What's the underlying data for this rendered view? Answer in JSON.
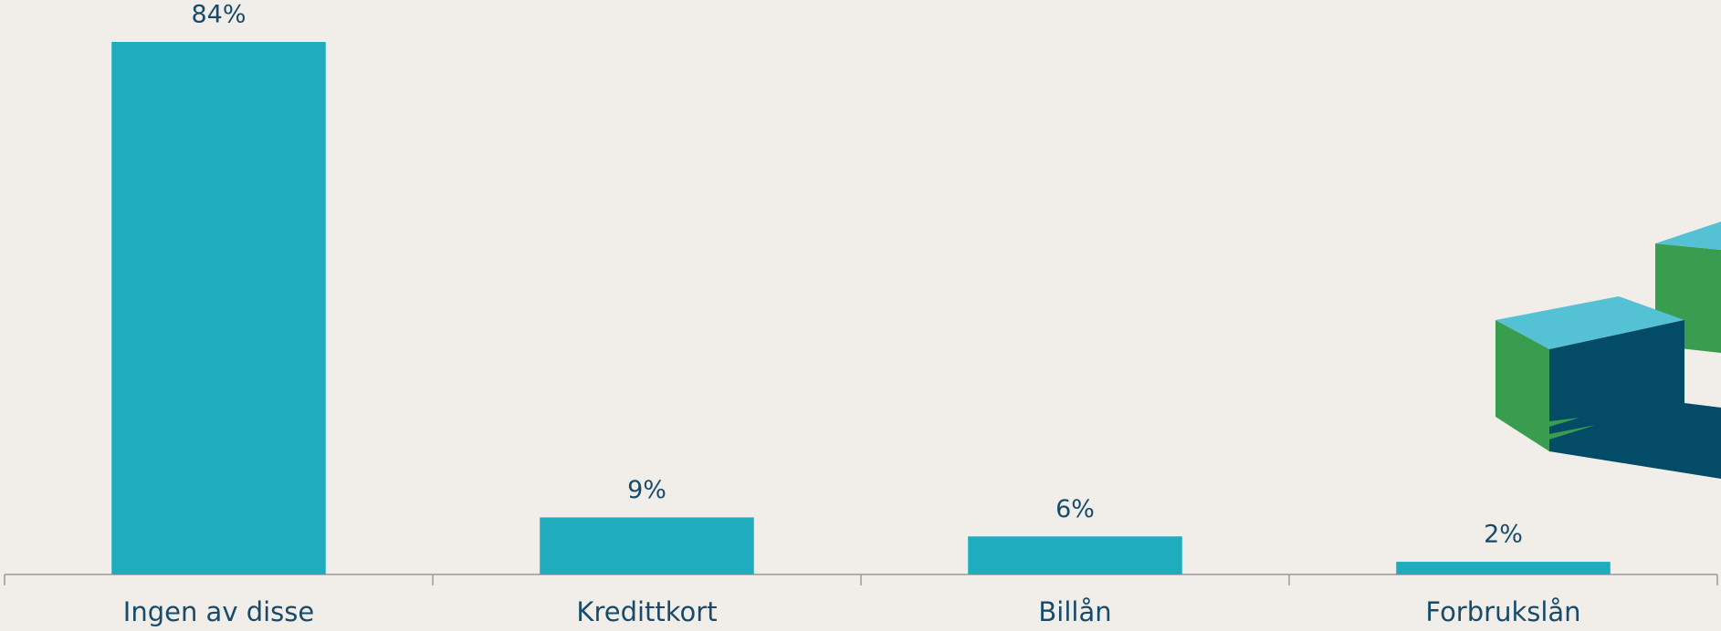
{
  "chart_data": {
    "type": "bar",
    "categories": [
      "Ingen av disse",
      "Kredittkort",
      "Billån",
      "Forbrukslån"
    ],
    "values": [
      84,
      9,
      6,
      2
    ],
    "value_labels": [
      "84%",
      "9%",
      "6%",
      "2%"
    ],
    "color": "#1eacbe"
  }
}
